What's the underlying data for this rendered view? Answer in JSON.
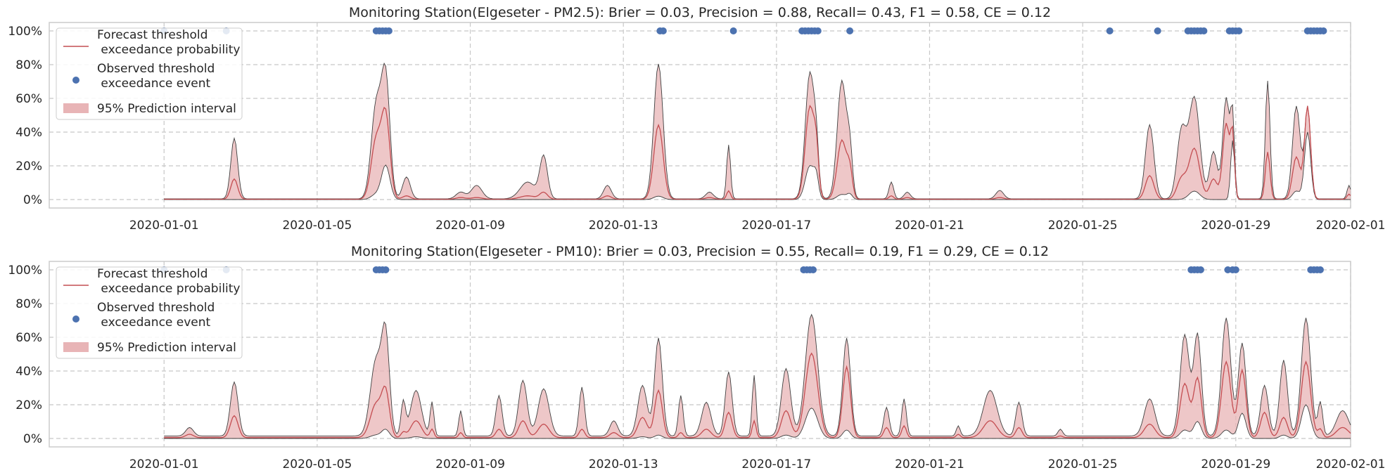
{
  "chart_data": [
    {
      "type": "area",
      "title": "Monitoring Station(Elgeseter - PM2.5): Brier = 0.03, Precision = 0.88, Recall= 0.43, F1 = 0.58, CE = 0.12",
      "xlim": [
        "2019-12-29",
        "2020-02-01"
      ],
      "ylim": [
        -5,
        105
      ],
      "y_format": "percent",
      "y_ticks": [
        0,
        20,
        40,
        60,
        80,
        100
      ],
      "y_tick_labels": [
        "0%",
        "20%",
        "40%",
        "60%",
        "80%",
        "100%"
      ],
      "x_tick_labels": [
        "2020-01-01",
        "2020-01-05",
        "2020-01-09",
        "2020-01-13",
        "2020-01-17",
        "2020-01-21",
        "2020-01-25",
        "2020-01-29",
        "2020-02-01"
      ],
      "grid": true,
      "legend_position": "top-left",
      "legend": [
        {
          "label": "Forecast threshold\n exceedance probability",
          "kind": "line",
          "color": "#c44e52"
        },
        {
          "label": "Observed threshold\n exceedance event",
          "kind": "marker",
          "color": "#4c72b0"
        },
        {
          "label": "95% Prediction interval",
          "kind": "band",
          "color": "#e8b4b6"
        }
      ],
      "colors": {
        "forecast": "#c44e52",
        "band": "#e8b4b6",
        "edge": "#404040",
        "event": "#4c72b0"
      },
      "baseline": {
        "lower": 0,
        "mid": 0.2,
        "upper": 0.4
      },
      "peaks": [
        {
          "t": "2020-01-02T20:00",
          "w": 0.09,
          "lower": 0,
          "mid": 12,
          "upper": 36
        },
        {
          "t": "2020-01-06T13:00",
          "w": 0.13,
          "lower": 3,
          "mid": 35,
          "upper": 55
        },
        {
          "t": "2020-01-06T19:00",
          "w": 0.11,
          "lower": 20,
          "mid": 48,
          "upper": 70
        },
        {
          "t": "2020-01-07T08:00",
          "w": 0.1,
          "lower": 0,
          "mid": 2,
          "upper": 13
        },
        {
          "t": "2020-01-08T18:00",
          "w": 0.12,
          "lower": 0,
          "mid": 1,
          "upper": 4
        },
        {
          "t": "2020-01-09T04:00",
          "w": 0.14,
          "lower": 0,
          "mid": 1,
          "upper": 8
        },
        {
          "t": "2020-01-10T12:00",
          "w": 0.2,
          "lower": 0,
          "mid": 2,
          "upper": 10
        },
        {
          "t": "2020-01-10T22:00",
          "w": 0.1,
          "lower": 0,
          "mid": 4,
          "upper": 25
        },
        {
          "t": "2020-01-12T14:00",
          "w": 0.1,
          "lower": 0,
          "mid": 2,
          "upper": 8
        },
        {
          "t": "2020-01-13T22:00",
          "w": 0.12,
          "lower": 2,
          "mid": 44,
          "upper": 80
        },
        {
          "t": "2020-01-15T06:00",
          "w": 0.1,
          "lower": 0,
          "mid": 1,
          "upper": 4
        },
        {
          "t": "2020-01-15T18:00",
          "w": 0.05,
          "lower": 0,
          "mid": 5,
          "upper": 32
        },
        {
          "t": "2020-01-17T21:00",
          "w": 0.12,
          "lower": 20,
          "mid": 55,
          "upper": 75
        },
        {
          "t": "2020-01-18T01:00",
          "w": 0.06,
          "lower": 10,
          "mid": 20,
          "upper": 20
        },
        {
          "t": "2020-01-18T17:00",
          "w": 0.12,
          "lower": 3,
          "mid": 35,
          "upper": 70
        },
        {
          "t": "2020-01-18T22:00",
          "w": 0.07,
          "lower": 3,
          "mid": 15,
          "upper": 25
        },
        {
          "t": "2020-01-20T00:00",
          "w": 0.06,
          "lower": 0,
          "mid": 2,
          "upper": 10
        },
        {
          "t": "2020-01-20T10:00",
          "w": 0.08,
          "lower": 0,
          "mid": 1,
          "upper": 4
        },
        {
          "t": "2020-01-22T20:00",
          "w": 0.1,
          "lower": 0,
          "mid": 1,
          "upper": 5
        },
        {
          "t": "2020-01-26T18:00",
          "w": 0.11,
          "lower": 0,
          "mid": 14,
          "upper": 44
        },
        {
          "t": "2020-01-27T14:00",
          "w": 0.12,
          "lower": 0,
          "mid": 12,
          "upper": 40
        },
        {
          "t": "2020-01-27T22:00",
          "w": 0.14,
          "lower": 5,
          "mid": 30,
          "upper": 60
        },
        {
          "t": "2020-01-28T10:00",
          "w": 0.1,
          "lower": 0,
          "mid": 12,
          "upper": 28
        },
        {
          "t": "2020-01-28T18:00",
          "w": 0.09,
          "lower": 0,
          "mid": 45,
          "upper": 60
        },
        {
          "t": "2020-01-28T22:00",
          "w": 0.05,
          "lower": 35,
          "mid": 35,
          "upper": 45
        },
        {
          "t": "2020-01-29T20:00",
          "w": 0.06,
          "lower": 0,
          "mid": 28,
          "upper": 70
        },
        {
          "t": "2020-01-30T14:00",
          "w": 0.1,
          "lower": 5,
          "mid": 25,
          "upper": 55
        },
        {
          "t": "2020-01-30T21:00",
          "w": 0.08,
          "lower": 40,
          "mid": 55,
          "upper": 50
        },
        {
          "t": "2020-01-31T23:00",
          "w": 0.05,
          "lower": 0,
          "mid": 3,
          "upper": 8
        }
      ],
      "events": [
        "2020-01-01T00:00",
        "2020-01-02T15:00",
        "2020-01-06T13:00",
        "2020-01-06T15:00",
        "2020-01-06T17:00",
        "2020-01-06T19:00",
        "2020-01-06T21:00",
        "2020-01-13T23:00",
        "2020-01-14T01:00",
        "2020-01-15T21:00",
        "2020-01-17T16:00",
        "2020-01-17T18:00",
        "2020-01-17T20:00",
        "2020-01-17T22:00",
        "2020-01-18T00:00",
        "2020-01-18T02:00",
        "2020-01-18T22:00",
        "2020-01-25T17:00",
        "2020-01-26T23:00",
        "2020-01-27T18:00",
        "2020-01-27T20:00",
        "2020-01-27T22:00",
        "2020-01-28T00:00",
        "2020-01-28T02:00",
        "2020-01-28T04:00",
        "2020-01-28T20:00",
        "2020-01-28T22:00",
        "2020-01-29T00:00",
        "2020-01-29T02:00",
        "2020-01-30T21:00",
        "2020-01-30T23:00",
        "2020-01-31T01:00",
        "2020-01-31T03:00",
        "2020-01-31T05:00",
        "2020-01-31T07:00"
      ]
    },
    {
      "type": "area",
      "title": "Monitoring Station(Elgeseter - PM10): Brier = 0.03, Precision = 0.55, Recall= 0.19, F1 = 0.29, CE = 0.12",
      "xlim": [
        "2019-12-29",
        "2020-02-01"
      ],
      "ylim": [
        -5,
        105
      ],
      "y_format": "percent",
      "y_ticks": [
        0,
        20,
        40,
        60,
        80,
        100
      ],
      "y_tick_labels": [
        "0%",
        "20%",
        "40%",
        "60%",
        "80%",
        "100%"
      ],
      "x_tick_labels": [
        "2020-01-01",
        "2020-01-05",
        "2020-01-09",
        "2020-01-13",
        "2020-01-17",
        "2020-01-21",
        "2020-01-25",
        "2020-01-29",
        "2020-02-01"
      ],
      "grid": true,
      "legend_position": "top-left",
      "legend": [
        {
          "label": "Forecast threshold\n exceedance probability",
          "kind": "line",
          "color": "#c44e52"
        },
        {
          "label": "Observed threshold\n exceedance event",
          "kind": "marker",
          "color": "#4c72b0"
        },
        {
          "label": "95% Prediction interval",
          "kind": "band",
          "color": "#e8b4b6"
        }
      ],
      "colors": {
        "forecast": "#c44e52",
        "band": "#e8b4b6",
        "edge": "#404040",
        "event": "#4c72b0"
      },
      "baseline": {
        "lower": 0,
        "mid": 0.5,
        "upper": 1.5
      },
      "peaks": [
        {
          "t": "2020-01-01T16:00",
          "w": 0.1,
          "lower": 0,
          "mid": 2,
          "upper": 5
        },
        {
          "t": "2020-01-02T20:00",
          "w": 0.1,
          "lower": 0,
          "mid": 13,
          "upper": 32
        },
        {
          "t": "2020-01-06T13:00",
          "w": 0.15,
          "lower": 2,
          "mid": 20,
          "upper": 45
        },
        {
          "t": "2020-01-06T19:00",
          "w": 0.1,
          "lower": 5,
          "mid": 25,
          "upper": 55
        },
        {
          "t": "2020-01-07T06:00",
          "w": 0.06,
          "lower": 0,
          "mid": 3,
          "upper": 20
        },
        {
          "t": "2020-01-07T14:00",
          "w": 0.14,
          "lower": 1,
          "mid": 10,
          "upper": 27
        },
        {
          "t": "2020-01-08T00:00",
          "w": 0.05,
          "lower": 0,
          "mid": 5,
          "upper": 20
        },
        {
          "t": "2020-01-08T18:00",
          "w": 0.05,
          "lower": 0,
          "mid": 3,
          "upper": 15
        },
        {
          "t": "2020-01-09T18:00",
          "w": 0.08,
          "lower": 0,
          "mid": 5,
          "upper": 24
        },
        {
          "t": "2020-01-10T09:00",
          "w": 0.11,
          "lower": 0,
          "mid": 10,
          "upper": 33
        },
        {
          "t": "2020-01-10T22:00",
          "w": 0.14,
          "lower": 0,
          "mid": 8,
          "upper": 28
        },
        {
          "t": "2020-01-11T22:00",
          "w": 0.07,
          "lower": 0,
          "mid": 5,
          "upper": 29
        },
        {
          "t": "2020-01-12T18:00",
          "w": 0.1,
          "lower": 0,
          "mid": 3,
          "upper": 9
        },
        {
          "t": "2020-01-13T12:00",
          "w": 0.12,
          "lower": 1,
          "mid": 12,
          "upper": 30
        },
        {
          "t": "2020-01-13T22:00",
          "w": 0.1,
          "lower": 2,
          "mid": 28,
          "upper": 58
        },
        {
          "t": "2020-01-14T12:00",
          "w": 0.06,
          "lower": 0,
          "mid": 3,
          "upper": 24
        },
        {
          "t": "2020-01-15T04:00",
          "w": 0.12,
          "lower": 0,
          "mid": 5,
          "upper": 20
        },
        {
          "t": "2020-01-15T18:00",
          "w": 0.09,
          "lower": 0,
          "mid": 15,
          "upper": 38
        },
        {
          "t": "2020-01-16T10:00",
          "w": 0.05,
          "lower": 0,
          "mid": 10,
          "upper": 36
        },
        {
          "t": "2020-01-17T06:00",
          "w": 0.12,
          "lower": 2,
          "mid": 16,
          "upper": 40
        },
        {
          "t": "2020-01-17T22:00",
          "w": 0.16,
          "lower": 18,
          "mid": 50,
          "upper": 72
        },
        {
          "t": "2020-01-18T20:00",
          "w": 0.1,
          "lower": 5,
          "mid": 42,
          "upper": 58
        },
        {
          "t": "2020-01-19T21:00",
          "w": 0.07,
          "lower": 0,
          "mid": 6,
          "upper": 17
        },
        {
          "t": "2020-01-20T08:00",
          "w": 0.06,
          "lower": 0,
          "mid": 7,
          "upper": 22
        },
        {
          "t": "2020-01-21T18:00",
          "w": 0.05,
          "lower": 0,
          "mid": 2,
          "upper": 6
        },
        {
          "t": "2020-01-22T14:00",
          "w": 0.18,
          "lower": 0,
          "mid": 10,
          "upper": 27
        },
        {
          "t": "2020-01-23T08:00",
          "w": 0.08,
          "lower": 0,
          "mid": 6,
          "upper": 20
        },
        {
          "t": "2020-01-24T10:00",
          "w": 0.06,
          "lower": 0,
          "mid": 1,
          "upper": 4
        },
        {
          "t": "2020-01-26T18:00",
          "w": 0.14,
          "lower": 0,
          "mid": 8,
          "upper": 22
        },
        {
          "t": "2020-01-27T16:00",
          "w": 0.12,
          "lower": 5,
          "mid": 32,
          "upper": 60
        },
        {
          "t": "2020-01-28T00:00",
          "w": 0.1,
          "lower": 10,
          "mid": 35,
          "upper": 60
        },
        {
          "t": "2020-01-28T18:00",
          "w": 0.12,
          "lower": 5,
          "mid": 45,
          "upper": 70
        },
        {
          "t": "2020-01-29T04:00",
          "w": 0.1,
          "lower": 15,
          "mid": 40,
          "upper": 55
        },
        {
          "t": "2020-01-29T18:00",
          "w": 0.1,
          "lower": 0,
          "mid": 15,
          "upper": 30
        },
        {
          "t": "2020-01-30T06:00",
          "w": 0.1,
          "lower": 2,
          "mid": 12,
          "upper": 45
        },
        {
          "t": "2020-01-30T20:00",
          "w": 0.12,
          "lower": 20,
          "mid": 45,
          "upper": 70
        },
        {
          "t": "2020-01-31T05:00",
          "w": 0.06,
          "lower": 0,
          "mid": 5,
          "upper": 20
        },
        {
          "t": "2020-01-31T19:00",
          "w": 0.16,
          "lower": 0,
          "mid": 6,
          "upper": 15
        }
      ],
      "events": [
        "2020-01-01T00:00",
        "2020-01-02T15:00",
        "2020-01-06T13:00",
        "2020-01-06T15:00",
        "2020-01-06T17:00",
        "2020-01-06T19:00",
        "2020-01-17T17:00",
        "2020-01-17T19:00",
        "2020-01-17T21:00",
        "2020-01-17T23:00",
        "2020-01-27T20:00",
        "2020-01-27T22:00",
        "2020-01-28T00:00",
        "2020-01-28T02:00",
        "2020-01-28T19:00",
        "2020-01-28T22:00",
        "2020-01-29T00:00",
        "2020-01-30T23:00",
        "2020-01-31T01:00",
        "2020-01-31T03:00",
        "2020-01-31T05:00"
      ]
    }
  ]
}
